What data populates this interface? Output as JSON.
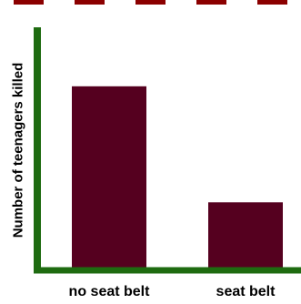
{
  "chart_data": {
    "type": "bar",
    "title": "",
    "xlabel": "",
    "ylabel": "Number of teenagers killed",
    "categories": [
      "no seat belt",
      "seat belt"
    ],
    "values": [
      100,
      36
    ],
    "ylim": [
      0,
      124
    ],
    "grid": false,
    "legend": "none",
    "colors": {
      "bar": "#55001f",
      "axis": "#1e6b10",
      "top_strip": "#8b0000"
    }
  }
}
